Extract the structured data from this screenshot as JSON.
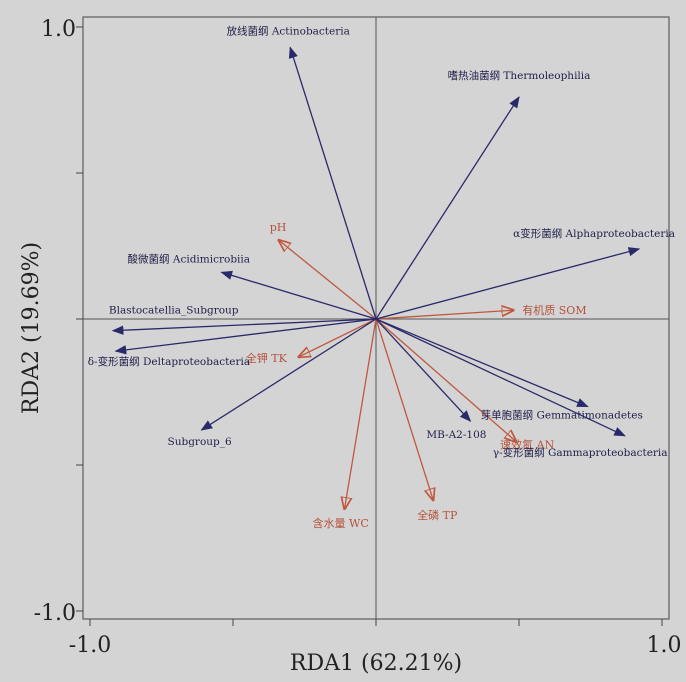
{
  "chart_data": {
    "type": "scatter",
    "subtype": "rda-biplot",
    "xlabel": "RDA1 (62.21%)",
    "ylabel": "RDA2 (19.69%)",
    "xlim": [
      -1.0,
      1.0
    ],
    "ylim": [
      -1.0,
      1.0
    ],
    "x_tick_labels": [
      "-1.0",
      "1.0"
    ],
    "y_tick_labels": [
      "1.0",
      "-1.0"
    ],
    "reference_lines": [
      0,
      0
    ],
    "colors": {
      "species": "#2a2a6a",
      "environment": "#c0583f",
      "background": "#d4d4d4"
    },
    "species_arrows": [
      {
        "label": "放线菌纲 Actinobacteria",
        "x": -0.3,
        "y": 0.93
      },
      {
        "label": "嗜热油菌纲 Thermoleophilia",
        "x": 0.5,
        "y": 0.76
      },
      {
        "label": "α变形菌纲 Alphaproteobacteria",
        "x": 0.92,
        "y": 0.24
      },
      {
        "label": "酸微菌纲 Acidimicrobiia",
        "x": -0.54,
        "y": 0.16
      },
      {
        "label": "Blastocatellia_Subgroup",
        "x": -0.92,
        "y": -0.04
      },
      {
        "label": "δ-变形菌纲 Deltaproteobacteria",
        "x": -0.91,
        "y": -0.11
      },
      {
        "label": "Subgroup_6",
        "x": -0.61,
        "y": -0.38
      },
      {
        "label": "芽单胞菌纲 Gemmatimonadetes",
        "x": 0.74,
        "y": -0.3
      },
      {
        "label": "γ-变形菌纲 Gammaproteobacteria",
        "x": 0.87,
        "y": -0.4
      },
      {
        "label": "MB-A2-108",
        "x": 0.33,
        "y": -0.35
      }
    ],
    "environment_arrows": [
      {
        "label": "pH",
        "x": -0.34,
        "y": 0.27
      },
      {
        "label": "有机质 SOM",
        "x": 0.48,
        "y": 0.03
      },
      {
        "label": "全钾 TK",
        "x": -0.27,
        "y": -0.13
      },
      {
        "label": "速效氮 AN",
        "x": 0.49,
        "y": -0.42
      },
      {
        "label": "含水量 WC",
        "x": -0.11,
        "y": -0.65
      },
      {
        "label": "全磷 TP",
        "x": 0.2,
        "y": -0.62
      }
    ]
  }
}
